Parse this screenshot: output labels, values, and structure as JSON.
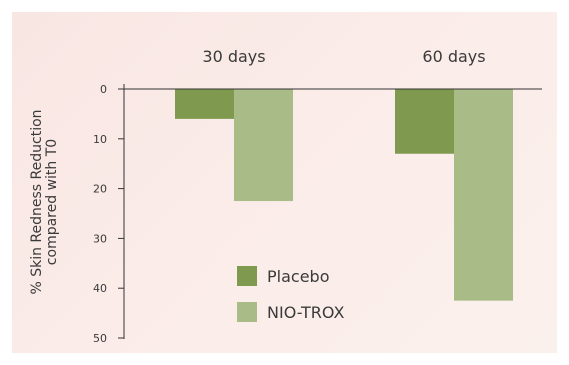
{
  "chart_data": {
    "type": "bar",
    "categories": [
      "30 days",
      "60 days"
    ],
    "series": [
      {
        "name": "Placebo",
        "values": [
          6,
          13
        ],
        "color": "#7f9a4e"
      },
      {
        "name": "NIO-TROX",
        "values": [
          22.5,
          42.5
        ],
        "color": "#a9bb86"
      }
    ],
    "ylabel_lines": [
      "% Skin Redness Reduction",
      "compared with T0"
    ],
    "ylim": [
      0,
      50
    ],
    "yticks": [
      0,
      10,
      20,
      30,
      40,
      50
    ],
    "y_inverted": true,
    "grid": false,
    "legend_position": "center"
  }
}
